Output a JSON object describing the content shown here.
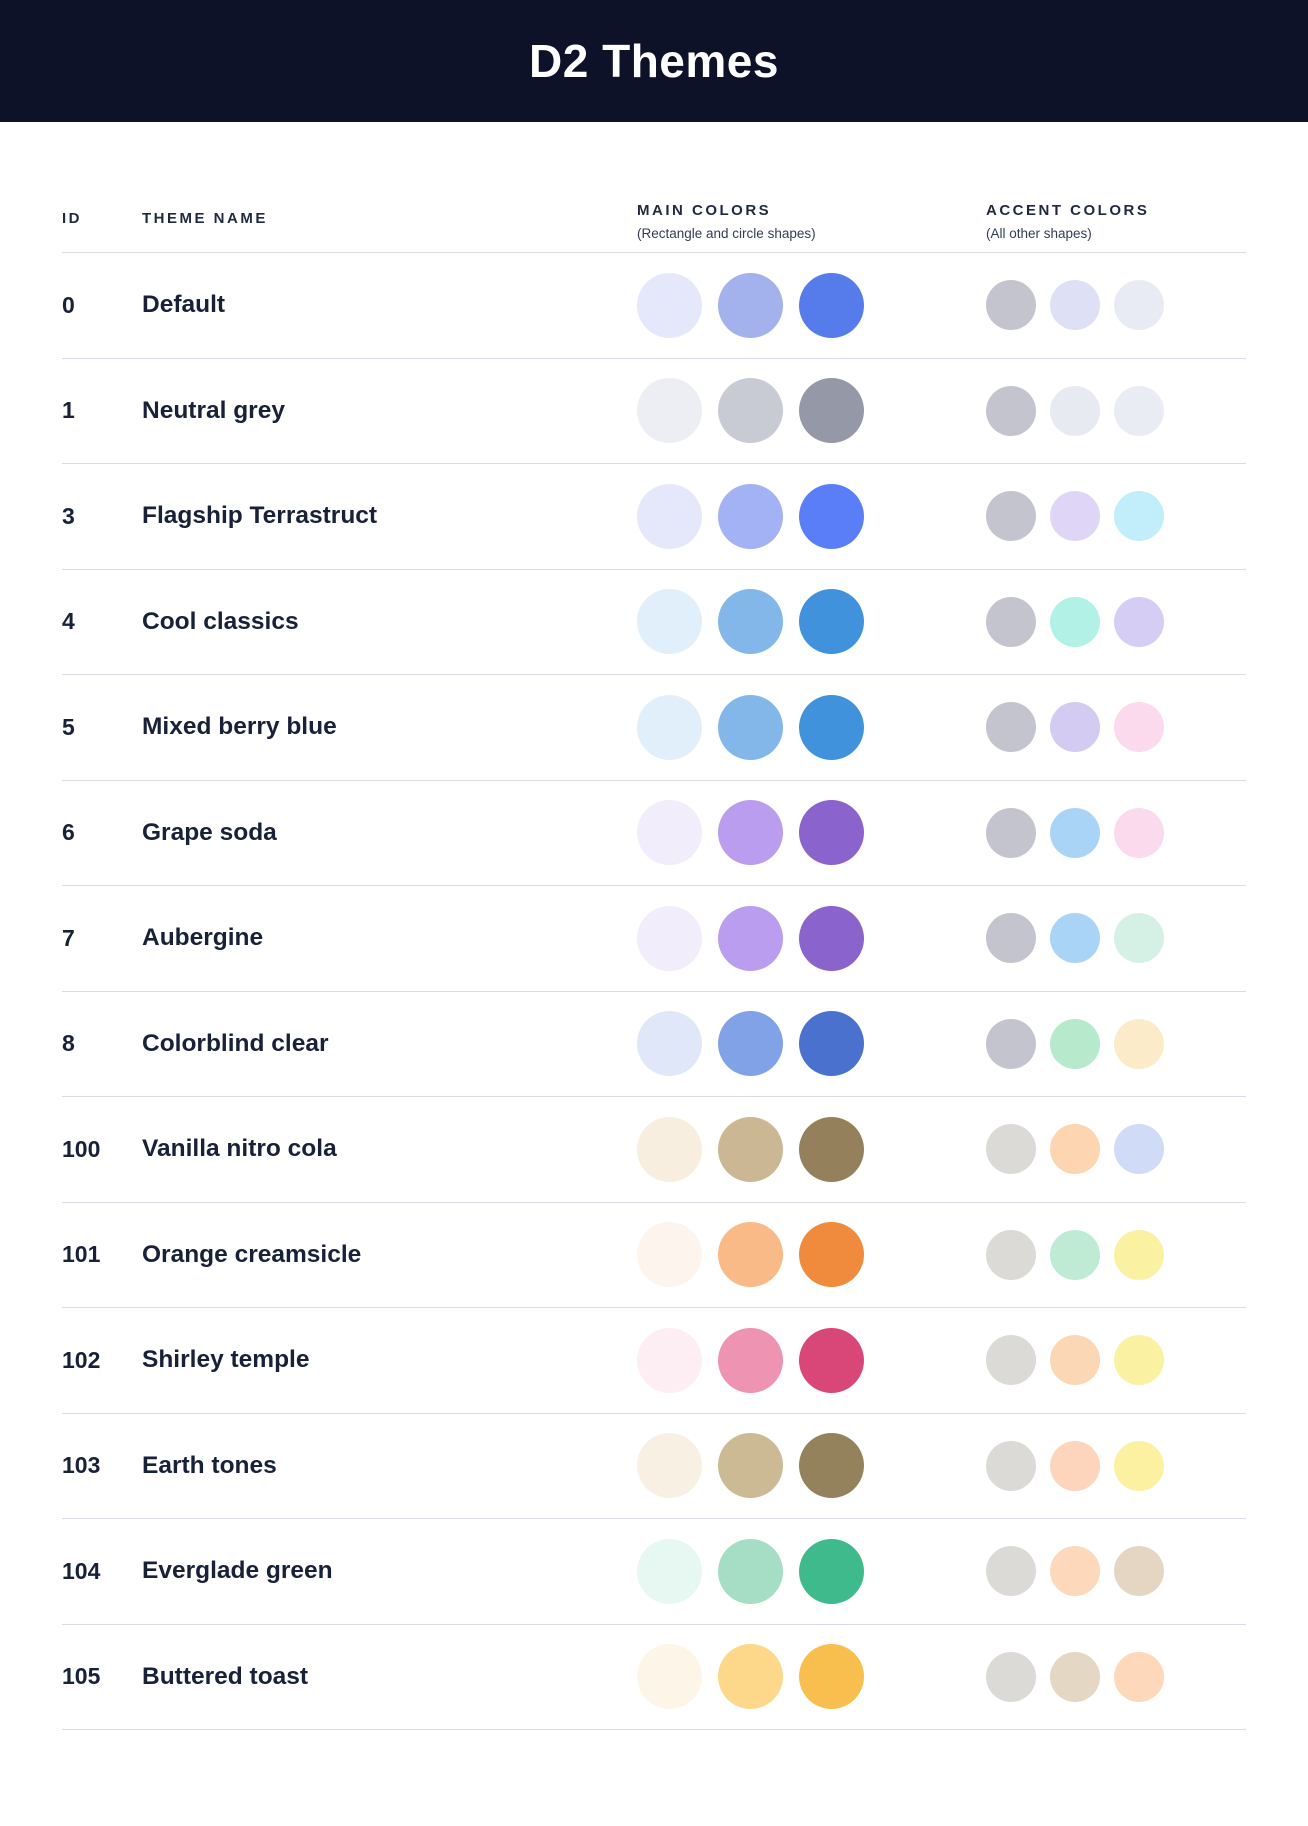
{
  "header": {
    "title": "D2 Themes",
    "background": "#0E1228",
    "text_color": "#FFFFFF"
  },
  "columns": {
    "id_label": "ID",
    "theme_name_label": "THEME NAME",
    "main_colors": {
      "label": "MAIN COLORS",
      "sub": "(Rectangle and circle shapes)"
    },
    "accent_colors": {
      "label": "ACCENT COLORS",
      "sub": "(All other shapes)"
    }
  },
  "style_colors": {
    "divider": "#d9dce8",
    "body_text": "#182138"
  },
  "themes": [
    {
      "id": "0",
      "name": "Default",
      "main": [
        "#E4E8FA",
        "#A3B2EC",
        "#567CEB"
      ],
      "accent": [
        "#C3C4CE",
        "#DEE1F6",
        "#E9EBF4"
      ]
    },
    {
      "id": "1",
      "name": "Neutral grey",
      "main": [
        "#ECEEF4",
        "#C8CAD4",
        "#9598A6"
      ],
      "accent": [
        "#C3C4CE",
        "#E8EAF2",
        "#EAECF4"
      ]
    },
    {
      "id": "3",
      "name": "Flagship Terrastruct",
      "main": [
        "#E4E8FA",
        "#A2B2F4",
        "#597EF7"
      ],
      "accent": [
        "#C3C4CE",
        "#DFD5F7",
        "#C2EDFA"
      ]
    },
    {
      "id": "4",
      "name": "Cool classics",
      "main": [
        "#E1EFFA",
        "#83B7EA",
        "#4092DC"
      ],
      "accent": [
        "#C3C4CE",
        "#B2F1E6",
        "#D6CDF4"
      ]
    },
    {
      "id": "5",
      "name": "Mixed berry blue",
      "main": [
        "#E1EFFA",
        "#83B7EA",
        "#4092DC"
      ],
      "accent": [
        "#C3C4CE",
        "#D3CBF1",
        "#FBDAED"
      ]
    },
    {
      "id": "6",
      "name": "Grape soda",
      "main": [
        "#F2EDFA",
        "#BB9DF0",
        "#8A63CC"
      ],
      "accent": [
        "#C3C4CE",
        "#AAD4F6",
        "#FCDAEE"
      ]
    },
    {
      "id": "7",
      "name": "Aubergine",
      "main": [
        "#F2EDFA",
        "#BB9DF0",
        "#8A63CC"
      ],
      "accent": [
        "#C3C4CE",
        "#AAD4F6",
        "#D5F1E6"
      ]
    },
    {
      "id": "8",
      "name": "Colorblind clear",
      "main": [
        "#DFE7F9",
        "#82A2E8",
        "#4A71CE"
      ],
      "accent": [
        "#C3C4CE",
        "#B7E9CD",
        "#FCEBC9"
      ]
    },
    {
      "id": "100",
      "name": "Vanilla nitro cola",
      "main": [
        "#F7EEE0",
        "#CCB795",
        "#94815B"
      ],
      "accent": [
        "#DBDAD6",
        "#FDD5B0",
        "#D0DBF8"
      ]
    },
    {
      "id": "101",
      "name": "Orange creamsicle",
      "main": [
        "#FDF4ED",
        "#F9BA87",
        "#F08B3D"
      ],
      "accent": [
        "#DBDAD6",
        "#BFEAD4",
        "#FBF1A2"
      ]
    },
    {
      "id": "102",
      "name": "Shirley temple",
      "main": [
        "#FDEEF3",
        "#EE93B2",
        "#D94778"
      ],
      "accent": [
        "#DBDAD6",
        "#FCD7B6",
        "#FBF1A2"
      ]
    },
    {
      "id": "103",
      "name": "Earth tones",
      "main": [
        "#F8F0E3",
        "#CBBA94",
        "#93825C"
      ],
      "accent": [
        "#DBDAD6",
        "#FCD5BC",
        "#FCF1A1"
      ]
    },
    {
      "id": "104",
      "name": "Everglade green",
      "main": [
        "#E6F8F1",
        "#A5DDC5",
        "#3EBA8C"
      ],
      "accent": [
        "#DBDAD6",
        "#FDD8BB",
        "#E4D6C3"
      ]
    },
    {
      "id": "105",
      "name": "Buttered toast",
      "main": [
        "#FDF6E8",
        "#FDD88A",
        "#F8BF4E"
      ],
      "accent": [
        "#DBDAD6",
        "#E4D7C3",
        "#FDD8BB"
      ]
    }
  ]
}
